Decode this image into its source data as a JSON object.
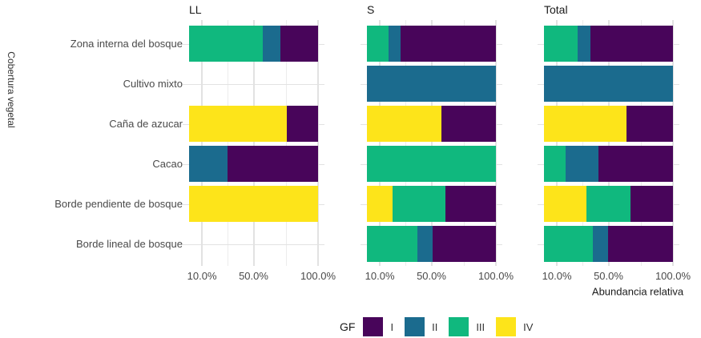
{
  "chart_data": {
    "type": "bar",
    "orientation": "horizontal",
    "stacked": true,
    "unit": "percent",
    "facet_titles": [
      "LL",
      "S",
      "Total"
    ],
    "categories": [
      "Zona interna del bosque",
      "Cultivo mixto",
      "Caña de azucar",
      "Cacao",
      "Borde pendiente de bosque",
      "Borde lineal de bosque"
    ],
    "ylabel": "Cobertura vegetal",
    "xlabel": "Abundancia relativa",
    "legend_title": "GF",
    "groups": [
      "I",
      "II",
      "III",
      "IV"
    ],
    "group_colors": {
      "I": "#48055A",
      "II": "#1B6B8E",
      "III": "#10B87E",
      "IV": "#FDE41A"
    },
    "stack_order": [
      "IV",
      "III",
      "II",
      "I"
    ],
    "xlim": [
      0,
      100
    ],
    "x_ticks": [
      {
        "value": 10,
        "label": "10.0%"
      },
      {
        "value": 50,
        "label": "50.0%"
      },
      {
        "value": 100,
        "label": "100.0%"
      }
    ],
    "x_minor_ticks": [
      30,
      75
    ],
    "grid": true,
    "legend_position": "bottom",
    "values_pct": {
      "LL": {
        "Zona interna del bosque": {
          "III": 57,
          "II": 14,
          "I": 29
        },
        "Cultivo mixto": {},
        "Caña de azucar": {
          "IV": 76,
          "I": 24
        },
        "Cacao": {
          "II": 30,
          "I": 70
        },
        "Borde pendiente de bosque": {
          "IV": 100
        },
        "Borde lineal de bosque": {}
      },
      "S": {
        "Zona interna del bosque": {
          "III": 17,
          "II": 9,
          "I": 74
        },
        "Cultivo mixto": {
          "II": 100
        },
        "Caña de azucar": {
          "IV": 58,
          "I": 42
        },
        "Cacao": {
          "III": 100
        },
        "Borde pendiente de bosque": {
          "IV": 20,
          "III": 41,
          "I": 39
        },
        "Borde lineal de bosque": {
          "III": 39,
          "II": 12,
          "I": 49
        }
      },
      "Total": {
        "Zona interna del bosque": {
          "III": 26,
          "II": 10,
          "I": 64
        },
        "Cultivo mixto": {
          "II": 100
        },
        "Caña de azucar": {
          "IV": 64,
          "I": 36
        },
        "Cacao": {
          "III": 17,
          "II": 25,
          "I": 58
        },
        "Borde pendiente de bosque": {
          "IV": 33,
          "III": 34,
          "I": 33
        },
        "Borde lineal de bosque": {
          "III": 38,
          "II": 12,
          "I": 50
        }
      }
    }
  }
}
